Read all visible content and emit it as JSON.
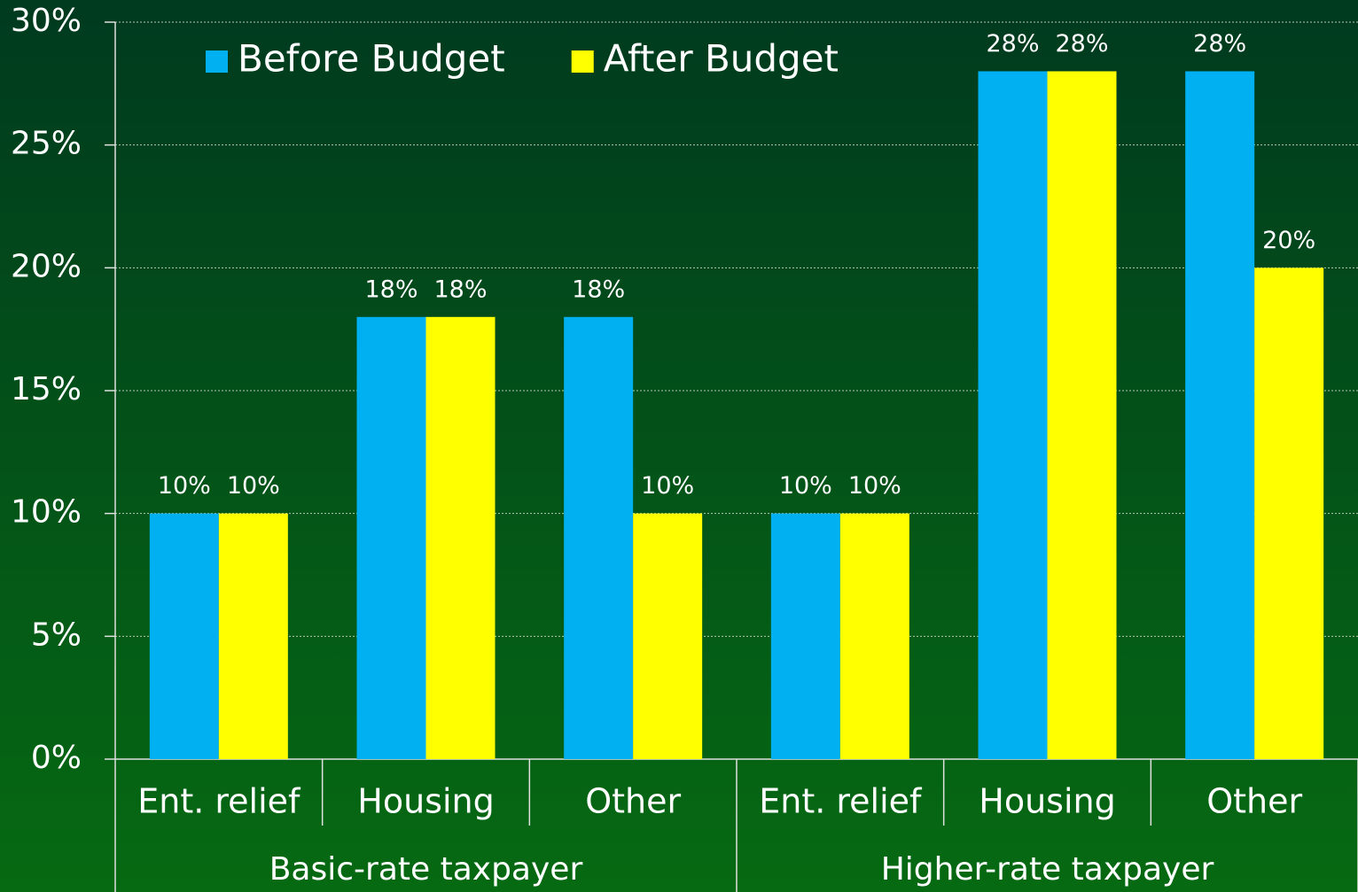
{
  "chart_data": {
    "type": "bar",
    "groups": [
      {
        "name": "Basic-rate taxpayer",
        "categories": [
          "Ent. relief",
          "Housing",
          "Other"
        ]
      },
      {
        "name": "Higher-rate taxpayer",
        "categories": [
          "Ent. relief",
          "Housing",
          "Other"
        ]
      }
    ],
    "series": [
      {
        "name": "Before Budget",
        "color": "#00b0f0",
        "values": [
          10,
          18,
          18,
          10,
          28,
          28
        ],
        "value_labels": [
          "10%",
          "18%",
          "18%",
          "10%",
          "28%",
          "28%"
        ]
      },
      {
        "name": "After Budget",
        "color": "#ffff00",
        "values": [
          10,
          18,
          10,
          10,
          28,
          20
        ],
        "value_labels": [
          "10%",
          "18%",
          "10%",
          "10%",
          "28%",
          "20%"
        ]
      }
    ],
    "ylim": [
      0,
      30
    ],
    "yticks": [
      {
        "value": 0,
        "label": "0%"
      },
      {
        "value": 5,
        "label": "5%"
      },
      {
        "value": 10,
        "label": "10%"
      },
      {
        "value": 15,
        "label": "15%"
      },
      {
        "value": 20,
        "label": "20%"
      },
      {
        "value": 25,
        "label": "25%"
      },
      {
        "value": 30,
        "label": "30%"
      }
    ],
    "grid": true,
    "legend": "upper left"
  }
}
